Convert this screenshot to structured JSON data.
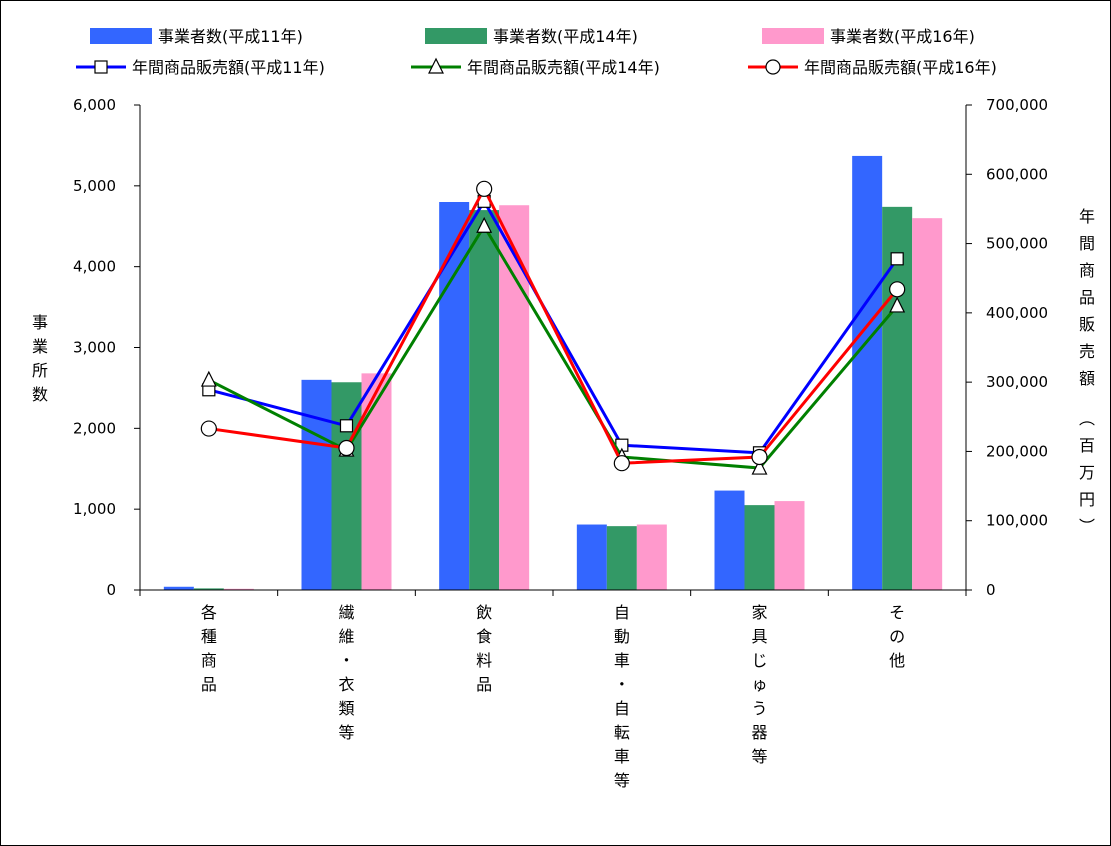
{
  "chart_data": {
    "type": "bar",
    "categories": [
      "各種商品",
      "繊維・衣類等",
      "飲食料品",
      "自動車・自転車等",
      "家具じゅう器等",
      "その他"
    ],
    "series": [
      {
        "name": "事業者数(平成11年)",
        "kind": "bar",
        "axis": "left",
        "color": "#3366ff",
        "values": [
          40,
          2600,
          4800,
          810,
          1230,
          5370
        ]
      },
      {
        "name": "事業者数(平成14年)",
        "kind": "bar",
        "axis": "left",
        "color": "#339966",
        "values": [
          20,
          2570,
          4700,
          790,
          1050,
          4740
        ]
      },
      {
        "name": "事業者数(平成16年)",
        "kind": "bar",
        "axis": "left",
        "color": "#ff99cc",
        "values": [
          15,
          2680,
          4760,
          810,
          1100,
          4600
        ]
      },
      {
        "name": "年間商品販売額(平成11年)",
        "kind": "line",
        "axis": "right",
        "color": "#0000ff",
        "marker": "square",
        "values": [
          289000,
          237000,
          561000,
          209000,
          198000,
          478000
        ]
      },
      {
        "name": "年間商品販売額(平成14年)",
        "kind": "line",
        "axis": "right",
        "color": "#008000",
        "marker": "triangle",
        "values": [
          303000,
          202000,
          525000,
          192000,
          176000,
          410000
        ]
      },
      {
        "name": "年間商品販売額(平成16年)",
        "kind": "line",
        "axis": "right",
        "color": "#ff0000",
        "marker": "circle",
        "values": [
          233000,
          205000,
          579000,
          183000,
          192000,
          434000
        ]
      }
    ],
    "ylabel": "事業所数",
    "y2label": "年間商品販売額（百万円）",
    "ylim": [
      0,
      6000
    ],
    "y2lim": [
      0,
      700000
    ],
    "yticks": [
      "0",
      "1,000",
      "2,000",
      "3,000",
      "4,000",
      "5,000",
      "6,000"
    ],
    "y2ticks": [
      "0",
      "100,000",
      "200,000",
      "300,000",
      "400,000",
      "500,000",
      "600,000",
      "700,000"
    ],
    "grid": false,
    "legend": "top"
  }
}
